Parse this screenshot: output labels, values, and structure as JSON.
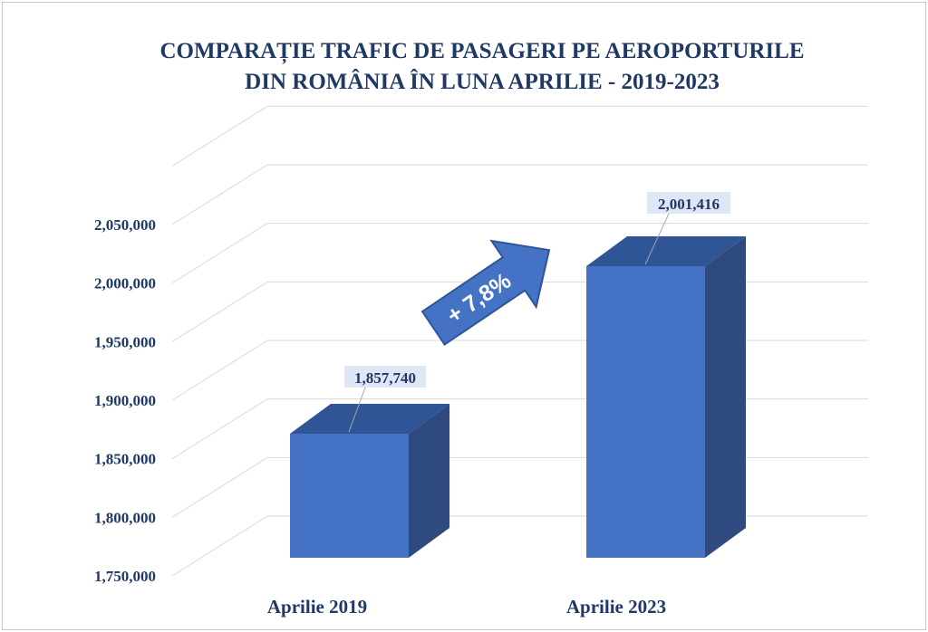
{
  "colors": {
    "bar_front": "#4472c4",
    "bar_top": "#2f5597",
    "bar_side": "#2e4a7f",
    "text": "#1f3864",
    "grid": "#d9d9d9"
  },
  "chart_data": {
    "type": "bar",
    "title": "COMPARAȚIE TRAFIC DE PASAGERI PE AEROPORTURILE DIN ROMÂNIA ÎN LUNA  APRILIE - 2019-2023",
    "title_lines": [
      "COMPARAȚIE TRAFIC DE PASAGERI PE AEROPORTURILE",
      "DIN ROMÂNIA ÎN LUNA  APRILIE - 2019-2023"
    ],
    "categories": [
      "Aprilie  2019",
      "Aprilie 2023"
    ],
    "values": [
      1857740,
      2001416
    ],
    "data_labels": [
      "1,857,740",
      "2,001,416"
    ],
    "yticks": [
      "1,750,000",
      "1,800,000",
      "1,850,000",
      "1,900,000",
      "1,950,000",
      "2,000,000",
      "2,050,000"
    ],
    "ytick_values": [
      1750000,
      1800000,
      1850000,
      1900000,
      1950000,
      2000000,
      2050000
    ],
    "ylim": [
      1750000,
      2100000
    ],
    "grid": true,
    "style": "3d",
    "annotation": "+ 7,8%",
    "xlabel": "",
    "ylabel": ""
  }
}
